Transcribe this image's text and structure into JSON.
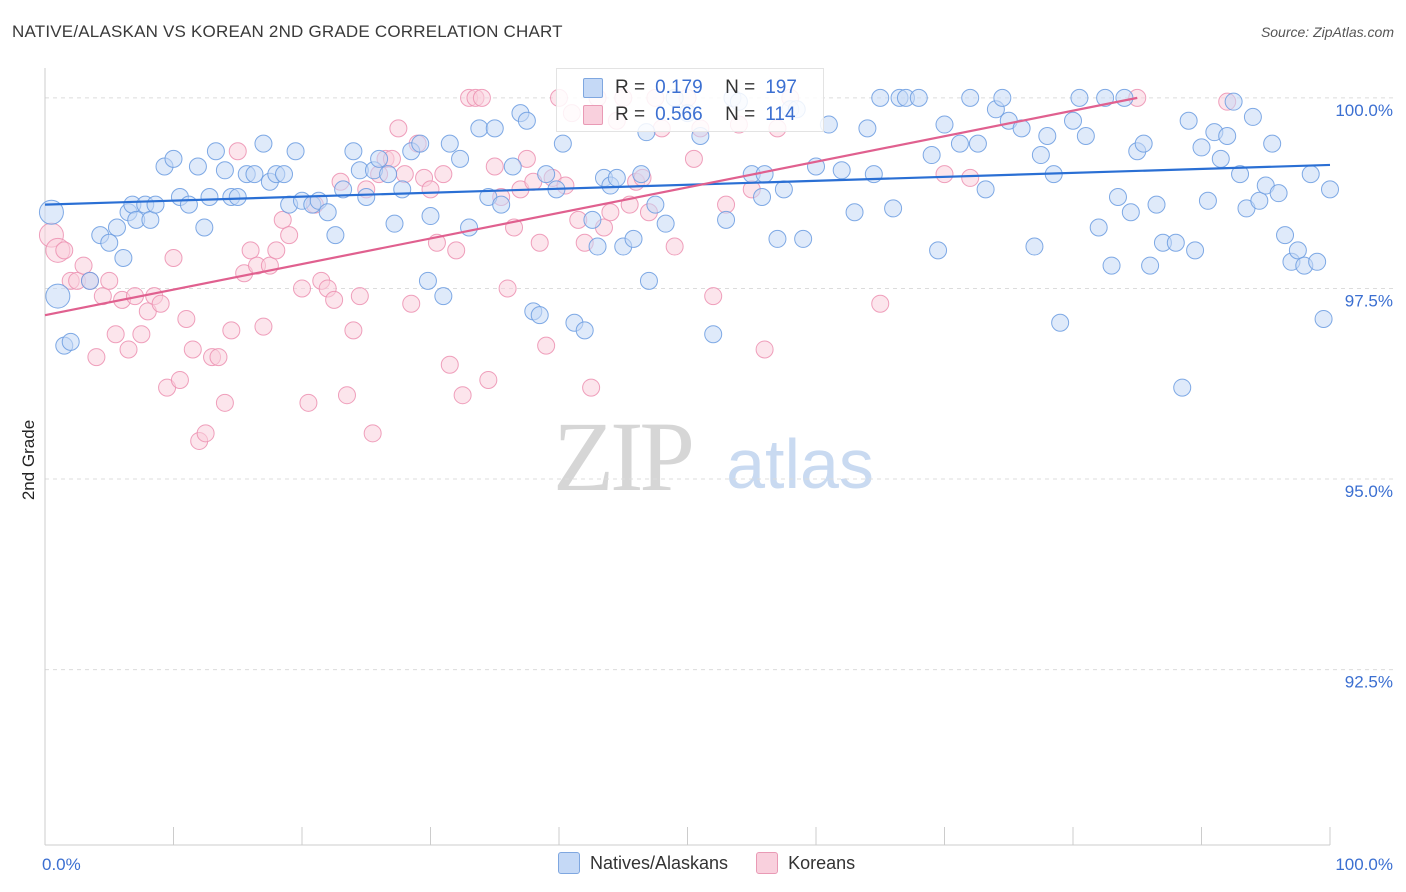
{
  "title": "NATIVE/ALASKAN VS KOREAN 2ND GRADE CORRELATION CHART",
  "source": "Source: ZipAtlas.com",
  "watermark": {
    "zip": "ZIP",
    "atlas": "atlas"
  },
  "stats": {
    "rows": [
      {
        "r_label": "R =",
        "r_value": "0.179",
        "n_label": "N =",
        "n_value": "197",
        "color": "#6a9be0"
      },
      {
        "r_label": "R =",
        "r_value": "0.566",
        "n_label": "N =",
        "n_value": "114",
        "color": "#ec8fb0"
      }
    ]
  },
  "chart_data": {
    "type": "scatter",
    "title": "NATIVE/ALASKAN VS KOREAN 2ND GRADE CORRELATION CHART",
    "xlabel": "",
    "ylabel": "2nd Grade",
    "xlim": [
      0,
      100
    ],
    "ylim": [
      90.2,
      100.3
    ],
    "x_tick_labels": [
      "0.0%",
      "100.0%"
    ],
    "y_ticks": [
      92.5,
      95.0,
      97.5,
      100.0
    ],
    "y_tick_labels": [
      "92.5%",
      "95.0%",
      "97.5%",
      "100.0%"
    ],
    "grid": "horizontal dashed",
    "legend_position": "bottom",
    "series": [
      {
        "name": "Natives/Alaskans",
        "color": "#6a9be0",
        "fill": "#c5d9f6",
        "trend": {
          "x": [
            0,
            100
          ],
          "y": [
            98.6,
            99.12
          ]
        },
        "points": [
          [
            0.5,
            98.5
          ],
          [
            1,
            97.4
          ],
          [
            1.5,
            96.75
          ],
          [
            2,
            96.8
          ],
          [
            3.5,
            97.6
          ],
          [
            4.3,
            98.2
          ],
          [
            5,
            98.1
          ],
          [
            5.6,
            98.3
          ],
          [
            6.1,
            97.9
          ],
          [
            6.5,
            98.5
          ],
          [
            6.8,
            98.6
          ],
          [
            7.1,
            98.4
          ],
          [
            7.8,
            98.6
          ],
          [
            8.2,
            98.4
          ],
          [
            8.6,
            98.6
          ],
          [
            9.3,
            99.1
          ],
          [
            10,
            99.2
          ],
          [
            10.5,
            98.7
          ],
          [
            11.2,
            98.6
          ],
          [
            11.9,
            99.1
          ],
          [
            12.4,
            98.3
          ],
          [
            12.8,
            98.7
          ],
          [
            13.3,
            99.3
          ],
          [
            14,
            99.05
          ],
          [
            14.5,
            98.7
          ],
          [
            15,
            98.7
          ],
          [
            15.7,
            99.0
          ],
          [
            16.3,
            99.0
          ],
          [
            17,
            99.4
          ],
          [
            17.5,
            98.9
          ],
          [
            18,
            99.0
          ],
          [
            18.6,
            99.0
          ],
          [
            19,
            98.6
          ],
          [
            19.5,
            99.3
          ],
          [
            20,
            98.65
          ],
          [
            20.8,
            98.6
          ],
          [
            21.3,
            98.65
          ],
          [
            22,
            98.5
          ],
          [
            22.6,
            98.2
          ],
          [
            23.2,
            98.8
          ],
          [
            24,
            99.3
          ],
          [
            24.5,
            99.05
          ],
          [
            25,
            98.7
          ],
          [
            25.6,
            99.05
          ],
          [
            26,
            99.2
          ],
          [
            26.7,
            99.0
          ],
          [
            27.2,
            98.35
          ],
          [
            27.8,
            98.8
          ],
          [
            28.5,
            99.3
          ],
          [
            29.2,
            99.4
          ],
          [
            29.8,
            97.6
          ],
          [
            30,
            98.45
          ],
          [
            31,
            97.4
          ],
          [
            31.5,
            99.4
          ],
          [
            32.3,
            99.2
          ],
          [
            33,
            98.3
          ],
          [
            33.8,
            99.6
          ],
          [
            34.5,
            98.7
          ],
          [
            35,
            99.6
          ],
          [
            35.5,
            98.6
          ],
          [
            36.4,
            99.1
          ],
          [
            37,
            99.8
          ],
          [
            37.5,
            99.7
          ],
          [
            38,
            97.2
          ],
          [
            38.5,
            97.15
          ],
          [
            39,
            99.0
          ],
          [
            39.8,
            98.8
          ],
          [
            40.3,
            99.4
          ],
          [
            41.2,
            97.05
          ],
          [
            42,
            96.95
          ],
          [
            42.6,
            98.4
          ],
          [
            43,
            98.05
          ],
          [
            43.5,
            98.95
          ],
          [
            44,
            98.85
          ],
          [
            44.5,
            98.95
          ],
          [
            45,
            98.05
          ],
          [
            45.8,
            98.15
          ],
          [
            46.4,
            99.0
          ],
          [
            46.8,
            99.55
          ],
          [
            47,
            97.6
          ],
          [
            47.5,
            98.6
          ],
          [
            48.3,
            98.35
          ],
          [
            49,
            100
          ],
          [
            50,
            99.8
          ],
          [
            51,
            99.5
          ],
          [
            52,
            96.9
          ],
          [
            53,
            98.4
          ],
          [
            53.5,
            100
          ],
          [
            54,
            99.95
          ],
          [
            55,
            99
          ],
          [
            55.8,
            98.7
          ],
          [
            56,
            99
          ],
          [
            57,
            98.15
          ],
          [
            57.5,
            98.8
          ],
          [
            58,
            99.85
          ],
          [
            58.5,
            99.85
          ],
          [
            59,
            98.15
          ],
          [
            60,
            99.1
          ],
          [
            61,
            99.65
          ],
          [
            62,
            99.05
          ],
          [
            63,
            98.5
          ],
          [
            64,
            99.6
          ],
          [
            64.5,
            99.0
          ],
          [
            65,
            100
          ],
          [
            66,
            98.55
          ],
          [
            66.5,
            100
          ],
          [
            67,
            100
          ],
          [
            68,
            100
          ],
          [
            69,
            99.25
          ],
          [
            69.5,
            98.0
          ],
          [
            70,
            99.65
          ],
          [
            71.2,
            99.4
          ],
          [
            72,
            100
          ],
          [
            72.6,
            99.4
          ],
          [
            73.2,
            98.8
          ],
          [
            74,
            99.85
          ],
          [
            74.5,
            100
          ],
          [
            75,
            99.7
          ],
          [
            76,
            99.6
          ],
          [
            77,
            98.05
          ],
          [
            77.5,
            99.25
          ],
          [
            78,
            99.5
          ],
          [
            78.5,
            99.0
          ],
          [
            79,
            97.05
          ],
          [
            80,
            99.7
          ],
          [
            80.5,
            100
          ],
          [
            81,
            99.5
          ],
          [
            82,
            98.3
          ],
          [
            82.5,
            100
          ],
          [
            83,
            97.8
          ],
          [
            83.5,
            98.7
          ],
          [
            84,
            100
          ],
          [
            84.5,
            98.5
          ],
          [
            85,
            99.3
          ],
          [
            85.5,
            99.4
          ],
          [
            86,
            97.8
          ],
          [
            86.5,
            98.6
          ],
          [
            87,
            98.1
          ],
          [
            88,
            98.1
          ],
          [
            88.5,
            96.2
          ],
          [
            89,
            99.7
          ],
          [
            89.5,
            98.0
          ],
          [
            90,
            99.35
          ],
          [
            90.5,
            98.65
          ],
          [
            91,
            99.55
          ],
          [
            91.5,
            99.2
          ],
          [
            92,
            99.5
          ],
          [
            92.5,
            99.95
          ],
          [
            93,
            99.0
          ],
          [
            93.5,
            98.55
          ],
          [
            94,
            99.75
          ],
          [
            94.5,
            98.65
          ],
          [
            95,
            98.85
          ],
          [
            95.5,
            99.4
          ],
          [
            96,
            98.75
          ],
          [
            96.5,
            98.2
          ],
          [
            97,
            97.85
          ],
          [
            97.5,
            98.0
          ],
          [
            98,
            97.8
          ],
          [
            98.5,
            99.0
          ],
          [
            99,
            97.85
          ],
          [
            99.5,
            97.1
          ],
          [
            100,
            98.8
          ]
        ]
      },
      {
        "name": "Koreans",
        "color": "#ec8fb0",
        "fill": "#f9d0dd",
        "trend": {
          "x": [
            0,
            85
          ],
          "y": [
            97.15,
            100.0
          ]
        },
        "points": [
          [
            0.5,
            98.2
          ],
          [
            1,
            98.0
          ],
          [
            1.5,
            98.0
          ],
          [
            2,
            97.6
          ],
          [
            2.5,
            97.6
          ],
          [
            3,
            97.8
          ],
          [
            3.5,
            97.6
          ],
          [
            4,
            96.6
          ],
          [
            4.5,
            97.4
          ],
          [
            5,
            97.6
          ],
          [
            5.5,
            96.9
          ],
          [
            6,
            97.35
          ],
          [
            6.5,
            96.7
          ],
          [
            7,
            97.4
          ],
          [
            7.5,
            96.9
          ],
          [
            8,
            97.2
          ],
          [
            8.5,
            97.4
          ],
          [
            9,
            97.3
          ],
          [
            9.5,
            96.2
          ],
          [
            10,
            97.9
          ],
          [
            10.5,
            96.3
          ],
          [
            11,
            97.1
          ],
          [
            11.5,
            96.7
          ],
          [
            12,
            95.5
          ],
          [
            12.5,
            95.6
          ],
          [
            13,
            96.6
          ],
          [
            13.5,
            96.6
          ],
          [
            14,
            96.0
          ],
          [
            14.5,
            96.95
          ],
          [
            15,
            99.3
          ],
          [
            15.5,
            97.7
          ],
          [
            16,
            98.0
          ],
          [
            16.5,
            97.8
          ],
          [
            17,
            97.0
          ],
          [
            17.5,
            97.8
          ],
          [
            18,
            98.0
          ],
          [
            18.5,
            98.4
          ],
          [
            19,
            98.2
          ],
          [
            20,
            97.5
          ],
          [
            20.5,
            96.0
          ],
          [
            21,
            98.6
          ],
          [
            21.5,
            97.6
          ],
          [
            22,
            97.5
          ],
          [
            22.5,
            97.35
          ],
          [
            23,
            98.9
          ],
          [
            23.5,
            96.1
          ],
          [
            24,
            96.95
          ],
          [
            24.5,
            97.4
          ],
          [
            25,
            98.8
          ],
          [
            25.5,
            95.6
          ],
          [
            26,
            99.0
          ],
          [
            26.5,
            99.2
          ],
          [
            27,
            99.2
          ],
          [
            27.5,
            99.6
          ],
          [
            28,
            99.0
          ],
          [
            28.5,
            97.3
          ],
          [
            29,
            99.4
          ],
          [
            29.5,
            98.95
          ],
          [
            30,
            98.8
          ],
          [
            30.5,
            98.1
          ],
          [
            31,
            99.0
          ],
          [
            31.5,
            96.5
          ],
          [
            32,
            98.0
          ],
          [
            32.5,
            96.1
          ],
          [
            33,
            100
          ],
          [
            33.5,
            100
          ],
          [
            34,
            100
          ],
          [
            34.5,
            96.3
          ],
          [
            35,
            99.1
          ],
          [
            35.5,
            98.7
          ],
          [
            36,
            97.5
          ],
          [
            36.5,
            98.3
          ],
          [
            37,
            98.8
          ],
          [
            37.5,
            99.2
          ],
          [
            38,
            98.9
          ],
          [
            38.5,
            98.1
          ],
          [
            39,
            96.75
          ],
          [
            39.5,
            98.95
          ],
          [
            40,
            100
          ],
          [
            40.5,
            98.85
          ],
          [
            41,
            99.8
          ],
          [
            41.5,
            98.4
          ],
          [
            42,
            98.1
          ],
          [
            42.5,
            96.2
          ],
          [
            43,
            100
          ],
          [
            43.5,
            98.3
          ],
          [
            44,
            98.5
          ],
          [
            44.5,
            99.7
          ],
          [
            45,
            100
          ],
          [
            45.5,
            98.6
          ],
          [
            46,
            98.9
          ],
          [
            46.5,
            98.95
          ],
          [
            47,
            98.5
          ],
          [
            47.5,
            100
          ],
          [
            48,
            99.6
          ],
          [
            49,
            98.05
          ],
          [
            50,
            100
          ],
          [
            50.5,
            99.2
          ],
          [
            51,
            99.6
          ],
          [
            52,
            97.4
          ],
          [
            53,
            98.6
          ],
          [
            54,
            99.65
          ],
          [
            55,
            98.8
          ],
          [
            56,
            96.7
          ],
          [
            57,
            99.6
          ],
          [
            58,
            100
          ],
          [
            65,
            97.3
          ],
          [
            70,
            99
          ],
          [
            72,
            98.95
          ],
          [
            85,
            100
          ],
          [
            92,
            99.95
          ]
        ]
      }
    ]
  }
}
